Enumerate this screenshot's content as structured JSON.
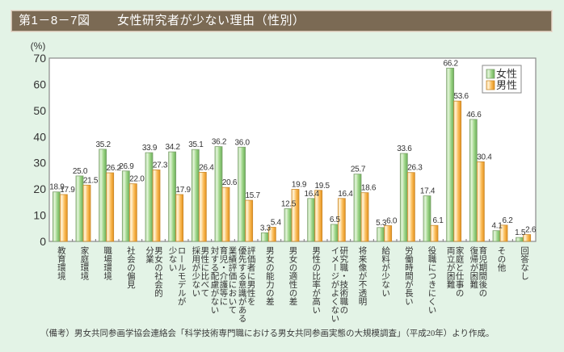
{
  "header": {
    "figure_number": "第1－8－7図",
    "title": "女性研究者が少ない理由（性別）"
  },
  "chart_data": {
    "type": "bar",
    "title": "女性研究者が少ない理由（性別）",
    "xlabel": "",
    "ylabel": "(%)",
    "ylim": [
      0,
      70
    ],
    "yticks": [
      0,
      10,
      20,
      30,
      40,
      50,
      60,
      70
    ],
    "grid": false,
    "legend_position": "top-right",
    "categories": [
      "教育環境",
      "家庭環境",
      "職場環境",
      "社会の偏見",
      "男女の社会的分業",
      "ロールモデルが少ない",
      "男性に比べて採用が少ない",
      "業績評価において育児・介護等に対する配慮がない",
      "評価者に男性を優先する意識がある",
      "男女の能力の差",
      "男女の適性の差",
      "男性の比率が高い",
      "研究職・技術職のイメージがよくない",
      "将来像が不透明",
      "給料が少ない",
      "労働時間が長い",
      "役職につきにくい",
      "家庭と仕事の両立が困難",
      "育児期間後の復帰が困難",
      "その他",
      "回答なし"
    ],
    "category_label_lines": [
      [
        "教育環境"
      ],
      [
        "家庭環境"
      ],
      [
        "職場環境"
      ],
      [
        "社会の偏見"
      ],
      [
        "男女の社会的",
        "分業"
      ],
      [
        "ロールモデルが",
        "少ない"
      ],
      [
        "男性に比べて",
        "採用が少ない"
      ],
      [
        "業績評価において",
        "育児・介護等に",
        "対する配慮がない"
      ],
      [
        "評価者に男性を",
        "優先する意識がある"
      ],
      [
        "男女の能力の差"
      ],
      [
        "男女の適性の差"
      ],
      [
        "男性の比率が高い"
      ],
      [
        "研究職・技術職の",
        "イメージがよくない"
      ],
      [
        "将来像が不透明"
      ],
      [
        "給料が少ない"
      ],
      [
        "労働時間が長い"
      ],
      [
        "役職につきにくい"
      ],
      [
        "家庭と仕事の",
        "両立が困難"
      ],
      [
        "育児期間後の",
        "復帰が困難"
      ],
      [
        "その他"
      ],
      [
        "回答なし"
      ]
    ],
    "series": [
      {
        "name": "女性",
        "color": "#8fcf78",
        "values": [
          18.9,
          25.0,
          35.2,
          26.9,
          33.9,
          34.2,
          35.1,
          36.2,
          36.0,
          3.3,
          12.5,
          16.4,
          6.5,
          25.7,
          5.3,
          33.6,
          17.4,
          66.2,
          46.6,
          4.1,
          1.5
        ]
      },
      {
        "name": "男性",
        "color": "#f7b040",
        "values": [
          17.9,
          21.5,
          26.2,
          22.0,
          27.3,
          17.9,
          26.4,
          20.6,
          15.7,
          5.4,
          19.9,
          19.5,
          16.4,
          18.6,
          6.0,
          26.3,
          6.1,
          53.6,
          30.4,
          6.2,
          2.6
        ]
      }
    ]
  },
  "footnote": "（備考）男女共同参画学協会連絡会「科学技術専門職における男女共同参画実態の大規模調査」（平成20年）より作成。"
}
